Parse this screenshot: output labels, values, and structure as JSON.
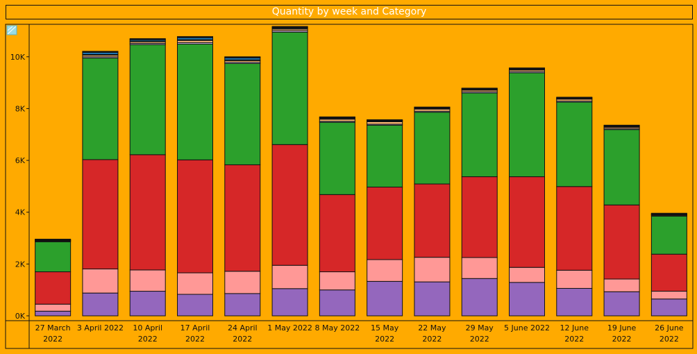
{
  "chart_data": {
    "type": "bar",
    "stacked": true,
    "title": "Quantity by week and Category",
    "xlabel": "",
    "ylabel": "",
    "ylim": [
      0,
      11200
    ],
    "y_ticks": [
      {
        "value": 0,
        "label": "0K"
      },
      {
        "value": 2000,
        "label": "2K"
      },
      {
        "value": 4000,
        "label": "4K"
      },
      {
        "value": 6000,
        "label": "6K"
      },
      {
        "value": 8000,
        "label": "8K"
      },
      {
        "value": 10000,
        "label": "10K"
      }
    ],
    "grid": false,
    "legend": "none",
    "categories": [
      [
        "27 March",
        "2022"
      ],
      [
        "3 April 2022"
      ],
      [
        "10 April",
        "2022"
      ],
      [
        "17 April",
        "2022"
      ],
      [
        "24 April",
        "2022"
      ],
      [
        "1 May 2022"
      ],
      [
        "8 May 2022"
      ],
      [
        "15 May",
        "2022"
      ],
      [
        "22 May",
        "2022"
      ],
      [
        "29 May",
        "2022"
      ],
      [
        "5 June 2022"
      ],
      [
        "12 June",
        "2022"
      ],
      [
        "19 June",
        "2022"
      ],
      [
        "26 June",
        "2022"
      ]
    ],
    "series": [
      {
        "color": "#9467BD",
        "values": [
          180,
          880,
          950,
          830,
          860,
          1050,
          1000,
          1330,
          1310,
          1440,
          1290,
          1060,
          930,
          650
        ]
      },
      {
        "color": "#FF9896",
        "values": [
          270,
          930,
          820,
          830,
          860,
          900,
          700,
          840,
          950,
          810,
          580,
          700,
          490,
          300
        ]
      },
      {
        "color": "#D62728",
        "values": [
          1250,
          4220,
          4450,
          4360,
          4110,
          4660,
          2980,
          2800,
          2830,
          3120,
          3500,
          3230,
          2860,
          1430
        ]
      },
      {
        "color": "#2CA02C",
        "values": [
          1160,
          3920,
          4250,
          4470,
          3910,
          4340,
          2790,
          2390,
          2770,
          3230,
          4010,
          3260,
          2910,
          1470
        ]
      },
      {
        "color": "#C5B0D5",
        "values": [
          20,
          50,
          50,
          60,
          50,
          60,
          40,
          40,
          40,
          50,
          50,
          40,
          40,
          20
        ]
      },
      {
        "color": "#FFBB78",
        "values": [
          20,
          60,
          60,
          80,
          60,
          60,
          80,
          90,
          80,
          60,
          60,
          70,
          50,
          30
        ]
      },
      {
        "color": "#17BECF",
        "values": [
          10,
          30,
          30,
          30,
          30,
          30,
          20,
          20,
          20,
          20,
          20,
          20,
          20,
          10
        ]
      },
      {
        "color": "#1F77B4",
        "values": [
          20,
          80,
          50,
          80,
          80,
          30,
          30,
          20,
          20,
          20,
          20,
          20,
          20,
          20
        ]
      },
      {
        "color": "#8C564B",
        "values": [
          10,
          20,
          20,
          20,
          20,
          20,
          20,
          20,
          20,
          20,
          20,
          20,
          20,
          10
        ]
      },
      {
        "color": "#222222",
        "values": [
          20,
          20,
          20,
          20,
          20,
          20,
          20,
          20,
          20,
          20,
          20,
          20,
          20,
          20
        ]
      }
    ]
  }
}
